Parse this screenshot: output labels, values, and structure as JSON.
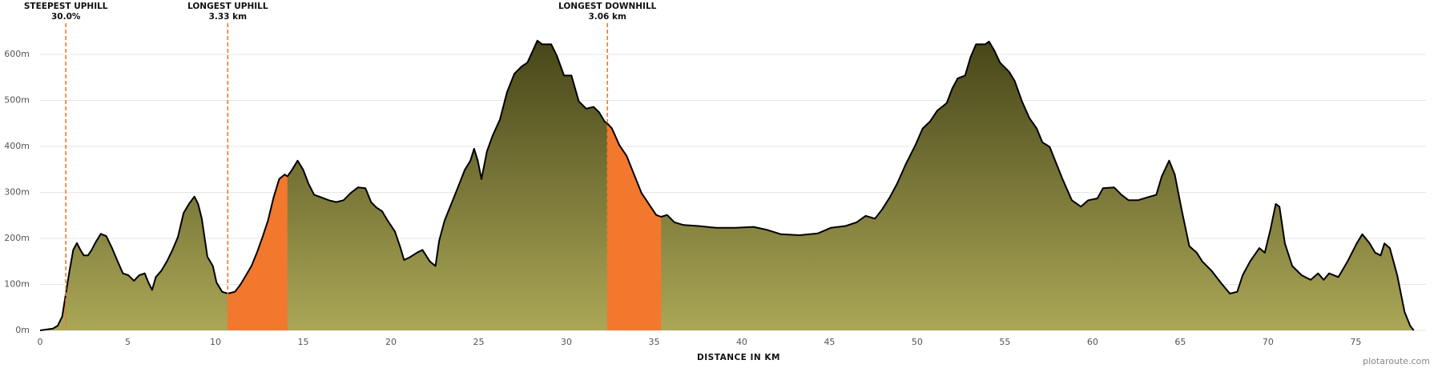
{
  "chart_data": {
    "type": "area",
    "x_label": "DISTANCE IN KM",
    "watermark": "plotaroute.com",
    "x": [
      0,
      0.73,
      1.0,
      1.26,
      1.47,
      1.68,
      1.89,
      2.1,
      2.3,
      2.5,
      2.73,
      2.94,
      3.14,
      3.46,
      3.77,
      4.09,
      4.4,
      4.72,
      5.03,
      5.35,
      5.66,
      5.97,
      6.18,
      6.39,
      6.6,
      6.92,
      7.23,
      7.55,
      7.86,
      8.18,
      8.49,
      8.8,
      9.01,
      9.22,
      9.54,
      9.85,
      10.06,
      10.38,
      10.7,
      11.11,
      11.43,
      11.74,
      12.05,
      12.37,
      12.68,
      13.0,
      13.31,
      13.63,
      13.94,
      14.1,
      14.36,
      14.68,
      15.0,
      15.3,
      15.62,
      16.04,
      16.46,
      16.88,
      17.3,
      17.72,
      18.13,
      18.55,
      18.87,
      19.18,
      19.5,
      19.81,
      20.23,
      20.55,
      20.75,
      21.07,
      21.49,
      21.8,
      22.22,
      22.54,
      22.75,
      23.06,
      23.38,
      23.8,
      24.21,
      24.53,
      24.74,
      24.95,
      25.16,
      25.47,
      25.79,
      26.21,
      26.62,
      27.04,
      27.46,
      27.78,
      28.09,
      28.35,
      28.62,
      29.14,
      29.45,
      29.87,
      30.29,
      30.71,
      31.13,
      31.55,
      31.87,
      32.18,
      32.34,
      32.6,
      33.02,
      33.44,
      33.86,
      34.28,
      34.7,
      35.12,
      35.4,
      35.74,
      36.16,
      36.69,
      37.53,
      38.57,
      39.62,
      40.67,
      41.4,
      42.24,
      43.29,
      44.34,
      45.07,
      45.91,
      46.54,
      47.06,
      47.59,
      48.0,
      48.43,
      48.85,
      49.37,
      49.9,
      50.31,
      50.73,
      51.15,
      51.68,
      52.0,
      52.31,
      52.73,
      53.04,
      53.35,
      53.88,
      54.09,
      54.4,
      54.72,
      55.24,
      55.56,
      55.97,
      56.39,
      56.81,
      57.13,
      57.55,
      57.86,
      58.28,
      58.81,
      59.33,
      59.75,
      60.27,
      60.59,
      61.22,
      61.64,
      62.05,
      62.58,
      63.1,
      63.63,
      63.94,
      64.36,
      64.68,
      65.09,
      65.51,
      65.93,
      66.25,
      66.77,
      67.3,
      67.82,
      68.24,
      68.55,
      68.97,
      69.5,
      69.81,
      70.13,
      70.44,
      70.65,
      70.96,
      71.38,
      71.91,
      72.43,
      72.85,
      73.17,
      73.48,
      74.01,
      74.53,
      75.05,
      75.37,
      75.79,
      76.1,
      76.42,
      76.63,
      76.94,
      77.36,
      77.78,
      78.1,
      78.3
    ],
    "values": [
      0,
      4,
      10,
      30,
      80,
      130,
      175,
      190,
      175,
      163,
      163,
      175,
      190,
      210,
      205,
      180,
      152,
      124,
      120,
      108,
      120,
      124,
      104,
      88,
      116,
      130,
      150,
      175,
      203,
      255,
      275,
      291,
      275,
      243,
      160,
      140,
      104,
      84,
      80,
      84,
      100,
      120,
      140,
      170,
      203,
      240,
      289,
      329,
      339,
      335,
      349,
      369,
      349,
      319,
      295,
      289,
      283,
      279,
      283,
      299,
      311,
      309,
      279,
      267,
      259,
      239,
      215,
      179,
      153,
      159,
      169,
      175,
      150,
      140,
      195,
      239,
      269,
      309,
      349,
      369,
      395,
      369,
      329,
      389,
      423,
      458,
      518,
      558,
      574,
      582,
      608,
      630,
      622,
      622,
      598,
      554,
      554,
      498,
      482,
      486,
      474,
      454,
      450,
      439,
      403,
      379,
      339,
      299,
      275,
      251,
      247,
      251,
      235,
      229,
      227,
      223,
      223,
      225,
      219,
      209,
      207,
      211,
      223,
      227,
      235,
      249,
      243,
      263,
      289,
      319,
      363,
      403,
      439,
      454,
      478,
      494,
      526,
      548,
      554,
      594,
      622,
      622,
      628,
      608,
      582,
      562,
      542,
      498,
      462,
      439,
      409,
      399,
      369,
      329,
      283,
      269,
      283,
      287,
      309,
      311,
      295,
      283,
      283,
      289,
      295,
      335,
      369,
      339,
      259,
      183,
      169,
      150,
      130,
      104,
      80,
      84,
      120,
      150,
      179,
      169,
      219,
      275,
      269,
      189,
      140,
      120,
      110,
      124,
      110,
      124,
      116,
      150,
      189,
      209,
      189,
      169,
      163,
      189,
      179,
      120,
      40,
      10,
      0
    ],
    "xlim": [
      0,
      79
    ],
    "ylim": [
      0,
      660
    ],
    "xticks": [
      0,
      5,
      10,
      15,
      20,
      25,
      30,
      35,
      40,
      45,
      50,
      55,
      60,
      65,
      70,
      75
    ],
    "yticks": [
      {
        "value": 0,
        "label": "0m"
      },
      {
        "value": 100,
        "label": "100m"
      },
      {
        "value": 200,
        "label": "200m"
      },
      {
        "value": 300,
        "label": "300m"
      },
      {
        "value": 400,
        "label": "400m"
      },
      {
        "value": 500,
        "label": "500m"
      },
      {
        "value": 600,
        "label": "600m"
      }
    ],
    "grid": true,
    "gradient": [
      "#474619",
      "#aba757"
    ],
    "line_color": "#000000",
    "highlight_color": "#f2782d",
    "highlights": [
      {
        "from": 10.7,
        "to": 14.1
      },
      {
        "from": 32.34,
        "to": 35.4
      }
    ],
    "annotations": [
      {
        "title": "STEEPEST UPHILL",
        "text": "30.0%",
        "x": 1.47
      },
      {
        "title": "LONGEST UPHILL",
        "text": "3.33 km",
        "x": 10.7
      },
      {
        "title": "LONGEST DOWNHILL",
        "text": "3.06 km",
        "x": 32.34
      }
    ]
  }
}
